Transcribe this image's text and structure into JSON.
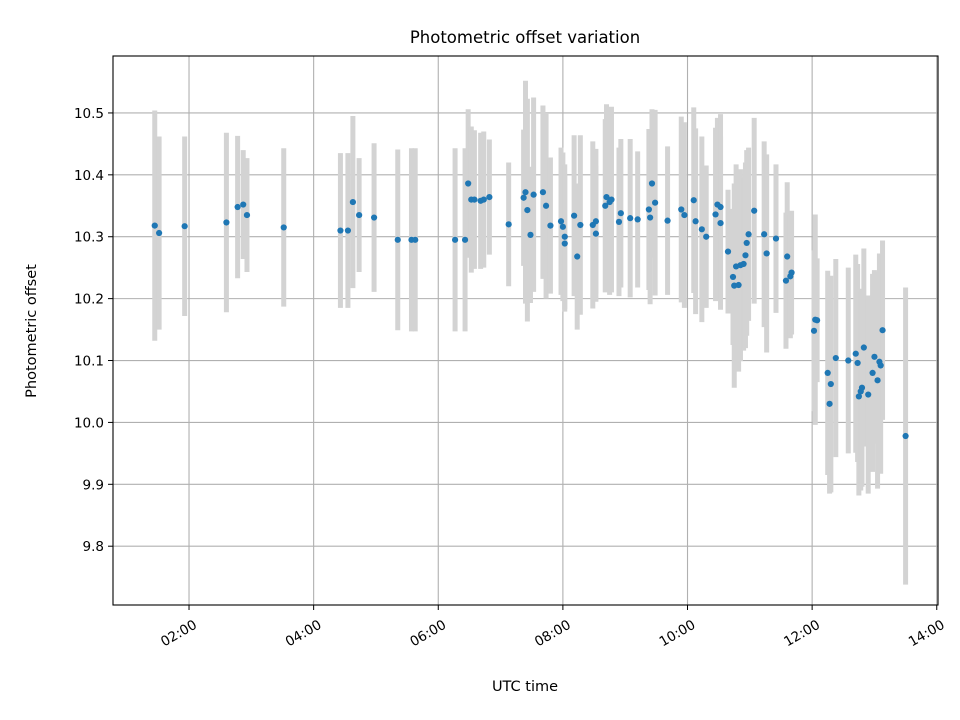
{
  "chart_data": {
    "type": "scatter",
    "title": "Photometric offset variation",
    "xlabel": "UTC time",
    "ylabel": "Photometric offset",
    "x_unit": "hours UTC",
    "xlim": [
      0.78,
      14.02
    ],
    "ylim": [
      9.705,
      10.592
    ],
    "xticks": [
      {
        "value": 2,
        "label": "02:00"
      },
      {
        "value": 4,
        "label": "04:00"
      },
      {
        "value": 6,
        "label": "06:00"
      },
      {
        "value": 8,
        "label": "08:00"
      },
      {
        "value": 10,
        "label": "10:00"
      },
      {
        "value": 12,
        "label": "12:00"
      },
      {
        "value": 14,
        "label": "14:00"
      }
    ],
    "yticks": [
      {
        "value": 9.8,
        "label": "9.8"
      },
      {
        "value": 9.9,
        "label": "9.9"
      },
      {
        "value": 10.0,
        "label": "10.0"
      },
      {
        "value": 10.1,
        "label": "10.1"
      },
      {
        "value": 10.2,
        "label": "10.2"
      },
      {
        "value": 10.3,
        "label": "10.3"
      },
      {
        "value": 10.4,
        "label": "10.4"
      },
      {
        "value": 10.5,
        "label": "10.5"
      }
    ],
    "grid": true,
    "marker_color": "#1f77b4",
    "errorbar_color": "#d3d3d3",
    "points": [
      [
        1.45,
        10.318,
        0.186
      ],
      [
        1.52,
        10.306,
        0.156
      ],
      [
        1.93,
        10.317,
        0.145
      ],
      [
        2.6,
        10.323,
        0.145
      ],
      [
        2.78,
        10.348,
        0.115
      ],
      [
        2.87,
        10.352,
        0.088
      ],
      [
        2.93,
        10.335,
        0.092
      ],
      [
        3.52,
        10.315,
        0.128
      ],
      [
        4.43,
        10.31,
        0.125
      ],
      [
        4.55,
        10.31,
        0.125
      ],
      [
        4.63,
        10.356,
        0.139
      ],
      [
        4.73,
        10.335,
        0.092
      ],
      [
        4.97,
        10.331,
        0.12
      ],
      [
        5.35,
        10.295,
        0.146
      ],
      [
        5.57,
        10.295,
        0.148
      ],
      [
        5.63,
        10.295,
        0.148
      ],
      [
        6.27,
        10.295,
        0.148
      ],
      [
        6.43,
        10.295,
        0.148
      ],
      [
        6.48,
        10.386,
        0.12
      ],
      [
        6.53,
        10.36,
        0.118
      ],
      [
        6.58,
        10.36,
        0.112
      ],
      [
        6.68,
        10.358,
        0.11
      ],
      [
        6.73,
        10.36,
        0.11
      ],
      [
        6.82,
        10.364,
        0.093
      ],
      [
        7.13,
        10.32,
        0.1
      ],
      [
        7.37,
        10.363,
        0.11
      ],
      [
        7.4,
        10.372,
        0.18
      ],
      [
        7.43,
        10.343,
        0.18
      ],
      [
        7.53,
        10.368,
        0.157
      ],
      [
        7.48,
        10.303,
        0.11
      ],
      [
        7.68,
        10.372,
        0.14
      ],
      [
        7.73,
        10.35,
        0.15
      ],
      [
        7.8,
        10.318,
        0.11
      ],
      [
        7.97,
        10.325,
        0.119
      ],
      [
        8.0,
        10.316,
        0.12
      ],
      [
        8.03,
        10.3,
        0.117
      ],
      [
        8.03,
        10.289,
        0.11
      ],
      [
        8.18,
        10.334,
        0.13
      ],
      [
        8.23,
        10.268,
        0.118
      ],
      [
        8.28,
        10.319,
        0.145
      ],
      [
        8.48,
        10.319,
        0.135
      ],
      [
        8.53,
        10.305,
        0.11
      ],
      [
        8.53,
        10.325,
        0.117
      ],
      [
        8.68,
        10.35,
        0.14
      ],
      [
        8.7,
        10.364,
        0.15
      ],
      [
        8.75,
        10.356,
        0.15
      ],
      [
        8.78,
        10.36,
        0.15
      ],
      [
        8.93,
        10.338,
        0.12
      ],
      [
        8.9,
        10.324,
        0.12
      ],
      [
        9.08,
        10.33,
        0.128
      ],
      [
        9.2,
        10.328,
        0.11
      ],
      [
        9.38,
        10.344,
        0.13
      ],
      [
        9.4,
        10.331,
        0.14
      ],
      [
        9.43,
        10.386,
        0.12
      ],
      [
        9.48,
        10.355,
        0.15
      ],
      [
        9.68,
        10.326,
        0.12
      ],
      [
        9.9,
        10.344,
        0.15
      ],
      [
        9.95,
        10.335,
        0.15
      ],
      [
        10.1,
        10.359,
        0.15
      ],
      [
        10.13,
        10.325,
        0.15
      ],
      [
        10.23,
        10.312,
        0.15
      ],
      [
        10.3,
        10.3,
        0.115
      ],
      [
        10.45,
        10.336,
        0.14
      ],
      [
        10.48,
        10.352,
        0.14
      ],
      [
        10.53,
        10.322,
        0.14
      ],
      [
        10.53,
        10.348,
        0.15
      ],
      [
        10.65,
        10.276,
        0.1
      ],
      [
        10.73,
        10.235,
        0.11
      ],
      [
        10.75,
        10.221,
        0.165
      ],
      [
        10.78,
        10.252,
        0.165
      ],
      [
        10.82,
        10.222,
        0.14
      ],
      [
        10.85,
        10.254,
        0.155
      ],
      [
        10.9,
        10.256,
        0.14
      ],
      [
        10.93,
        10.27,
        0.15
      ],
      [
        10.95,
        10.29,
        0.15
      ],
      [
        10.98,
        10.304,
        0.14
      ],
      [
        11.07,
        10.342,
        0.15
      ],
      [
        11.23,
        10.304,
        0.15
      ],
      [
        11.27,
        10.273,
        0.16
      ],
      [
        11.42,
        10.297,
        0.12
      ],
      [
        11.58,
        10.229,
        0.11
      ],
      [
        11.6,
        10.268,
        0.12
      ],
      [
        11.65,
        10.236,
        0.1
      ],
      [
        11.67,
        10.242,
        0.1
      ],
      [
        12.03,
        10.148,
        0.13
      ],
      [
        12.05,
        10.166,
        0.17
      ],
      [
        12.08,
        10.165,
        0.1
      ],
      [
        12.25,
        10.08,
        0.165
      ],
      [
        12.28,
        10.03,
        0.145
      ],
      [
        12.3,
        10.062,
        0.175
      ],
      [
        12.38,
        10.104,
        0.16
      ],
      [
        12.58,
        10.1,
        0.15
      ],
      [
        12.7,
        10.111,
        0.16
      ],
      [
        12.73,
        10.096,
        0.16
      ],
      [
        12.75,
        10.042,
        0.16
      ],
      [
        12.78,
        10.05,
        0.16
      ],
      [
        12.8,
        10.056,
        0.16
      ],
      [
        12.83,
        10.121,
        0.16
      ],
      [
        12.9,
        10.045,
        0.16
      ],
      [
        12.97,
        10.08,
        0.16
      ],
      [
        13.0,
        10.106,
        0.14
      ],
      [
        13.05,
        10.068,
        0.175
      ],
      [
        13.08,
        10.098,
        0.175
      ],
      [
        13.1,
        10.092,
        0.175
      ],
      [
        13.13,
        10.149,
        0.145
      ],
      [
        13.5,
        9.978,
        0.24
      ]
    ]
  }
}
